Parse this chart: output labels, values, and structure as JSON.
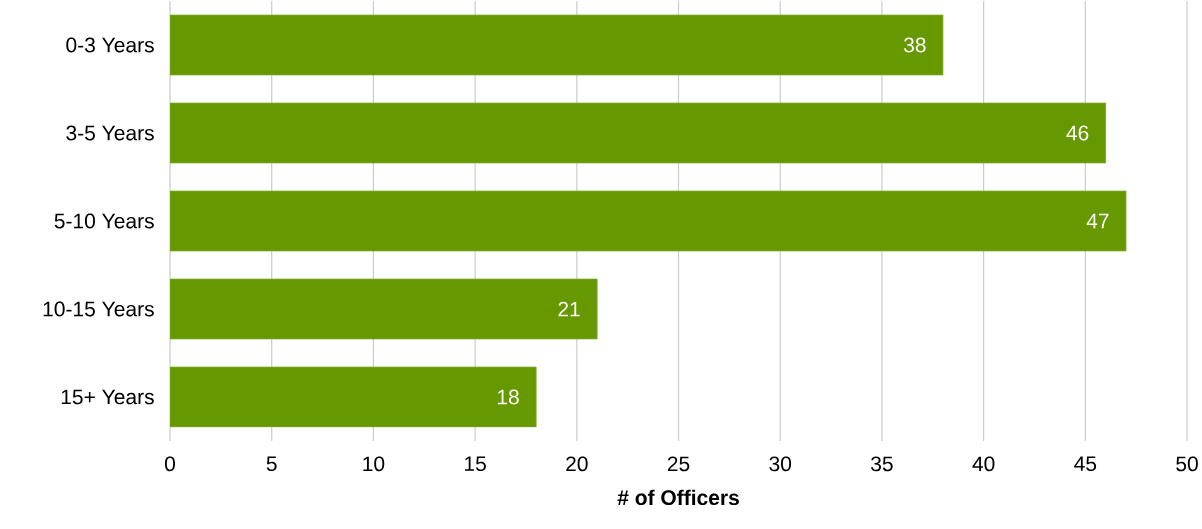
{
  "chart_data": {
    "type": "bar",
    "orientation": "horizontal",
    "xlabel": "# of Officers",
    "categories": [
      "0-3 Years",
      "3-5 Years",
      "5-10 Years",
      "10-15 Years",
      "15+ Years"
    ],
    "values": [
      38,
      46,
      47,
      21,
      18
    ],
    "color": "#669900",
    "data_labels": true,
    "xlim": [
      0,
      50
    ],
    "xticks": [
      0,
      5,
      10,
      15,
      20,
      25,
      30,
      35,
      40,
      45,
      50
    ],
    "grid": "x"
  }
}
